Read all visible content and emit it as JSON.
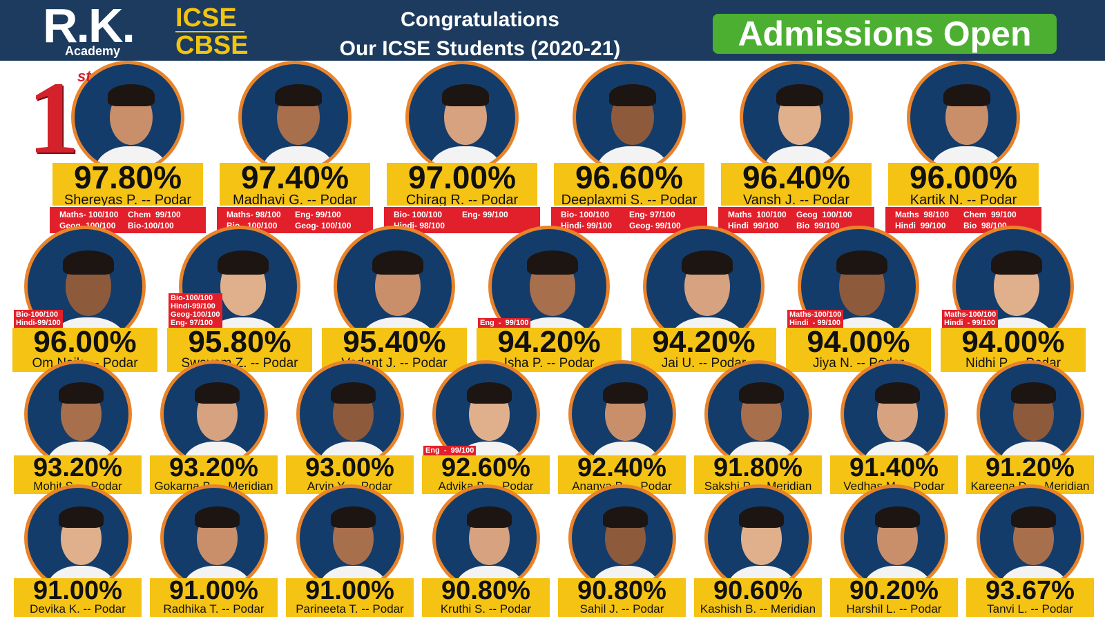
{
  "header": {
    "logo": "R.K.",
    "academy": "Academy",
    "board1": "ICSE",
    "board2": "CBSE",
    "congrats": "Congratulations",
    "subtitle": "Our ICSE Students (2020-21)",
    "admissions": "Admissions Open",
    "rank_badge": {
      "number": "1",
      "suffix": "st"
    }
  },
  "rows": [
    {
      "students": [
        {
          "percent": "97.80%",
          "name": "Shereyas P. -- Podar",
          "marks": [
            "Maths- 100/100",
            "Chem  99/100",
            "Geog- 100/100",
            "Bio-100/100"
          ]
        },
        {
          "percent": "97.40%",
          "name": "Madhavi G. -- Podar",
          "marks": [
            "Maths- 98/100",
            "Eng- 99/100",
            "Bio-  100/100",
            "Geog- 100/100"
          ]
        },
        {
          "percent": "97.00%",
          "name": "Chirag R. -- Podar",
          "marks": [
            "Bio- 100/100",
            "Eng- 99/100",
            "Hindi- 98/100"
          ]
        },
        {
          "percent": "96.60%",
          "name": "Deeplaxmi S. -- Podar",
          "marks": [
            "Bio- 100/100",
            "Eng- 97/100",
            "Hindi- 99/100",
            "Geog- 99/100"
          ]
        },
        {
          "percent": "96.40%",
          "name": "Vansh J. -- Podar",
          "marks": [
            "Maths  100/100",
            "Geog  100/100",
            "Hindi  99/100",
            "Bio  99/100"
          ]
        },
        {
          "percent": "96.00%",
          "name": "Kartik N. -- Podar",
          "marks": [
            "Maths  98/100",
            "Chem  99/100",
            "Hindi  99/100",
            "Bio  98/100"
          ]
        }
      ]
    },
    {
      "students": [
        {
          "percent": "96.00%",
          "name": "Om Naik. -- Podar",
          "marks": [
            "Bio-100/100",
            "Hindi-99/100"
          ]
        },
        {
          "percent": "95.80%",
          "name": "Swayam Z. -- Podar",
          "marks": [
            "Bio-100/100",
            "Hindi-99/100",
            "Geog-100/100",
            "Eng- 97/100"
          ]
        },
        {
          "percent": "95.40%",
          "name": "Vedant J. -- Podar"
        },
        {
          "percent": "94.20%",
          "name": "Isha P. -- Podar",
          "marks": [
            "Eng  -  99/100"
          ]
        },
        {
          "percent": "94.20%",
          "name": "Jai U. -- Podar"
        },
        {
          "percent": "94.00%",
          "name": "Jiya N. -- Podar",
          "marks": [
            "Maths-100/100",
            "Hindi  - 99/100"
          ]
        },
        {
          "percent": "94.00%",
          "name": "Nidhi P. -- Podar",
          "marks": [
            "Maths-100/100",
            "Hindi  - 99/100"
          ]
        }
      ]
    },
    {
      "students": [
        {
          "percent": "93.20%",
          "name": "Mohit S. -- Podar"
        },
        {
          "percent": "93.20%",
          "name": "Gokarna B. -- Meridian"
        },
        {
          "percent": "93.00%",
          "name": "Arvin Y. -- Podar"
        },
        {
          "percent": "92.60%",
          "name": "Advika B. -- Podar",
          "marks": [
            "Eng  -  99/100"
          ]
        },
        {
          "percent": "92.40%",
          "name": "Ananya B. -- Podar"
        },
        {
          "percent": "91.80%",
          "name": "Sakshi P. -- Meridian"
        },
        {
          "percent": "91.40%",
          "name": "Vedhas M. -- Podar"
        },
        {
          "percent": "91.20%",
          "name": "Kareena D. -- Meridian"
        }
      ]
    },
    {
      "students": [
        {
          "percent": "91.00%",
          "name": "Devika K. -- Podar"
        },
        {
          "percent": "91.00%",
          "name": "Radhika T. -- Podar"
        },
        {
          "percent": "91.00%",
          "name": "Parineeta T. -- Podar"
        },
        {
          "percent": "90.80%",
          "name": "Kruthi S. -- Podar"
        },
        {
          "percent": "90.80%",
          "name": "Sahil J. -- Podar"
        },
        {
          "percent": "90.60%",
          "name": "Kashish B. -- Meridian"
        },
        {
          "percent": "90.20%",
          "name": "Harshil L. -- Podar"
        },
        {
          "percent": "93.67%",
          "name": "Tanvi L. -- Podar"
        }
      ]
    }
  ]
}
